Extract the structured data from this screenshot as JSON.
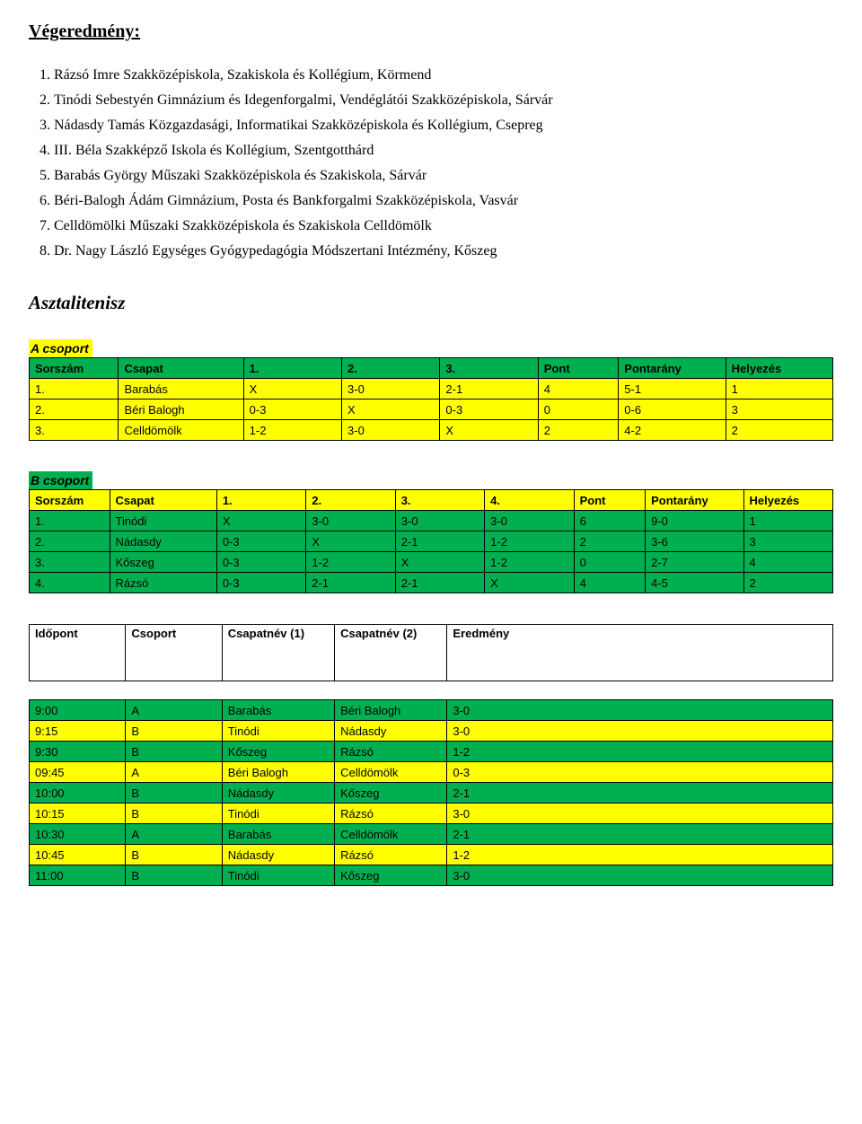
{
  "title": "Végeredmény:",
  "final_results": [
    "Rázsó Imre Szakközépiskola, Szakiskola és Kollégium, Körmend",
    "Tinódi Sebestyén Gimnázium és Idegenforgalmi, Vendéglátói Szakközépiskola, Sárvár",
    "Nádasdy Tamás Közgazdasági, Informatikai Szakközépiskola és Kollégium, Csepreg",
    "III. Béla Szakképző Iskola és Kollégium, Szentgotthárd",
    "Barabás György Műszaki Szakközépiskola és Szakiskola, Sárvár",
    "Béri-Balogh Ádám Gimnázium, Posta és Bankforgalmi Szakközépiskola, Vasvár",
    "Celldömölki Műszaki Szakközépiskola és Szakiskola Celldömölk",
    "Dr. Nagy László Egységes Gyógypedagógia Módszertani Intézmény, Kőszeg"
  ],
  "section_heading": "Asztalitenisz",
  "groupA": {
    "label": "A csoport",
    "label_bg": "#ffff00",
    "header_bg": "#00b050",
    "row_bg": "#ffff00",
    "headers": [
      "Sorszám",
      "Csapat",
      "1.",
      "2.",
      "3.",
      "Pont",
      "Pontarány",
      "Helyezés"
    ],
    "rows": [
      [
        "1.",
        "Barabás",
        "X",
        "3-0",
        "2-1",
        "4",
        "5-1",
        "1"
      ],
      [
        "2.",
        "Béri Balogh",
        "0-3",
        "X",
        "0-3",
        "0",
        "0-6",
        "3"
      ],
      [
        "3.",
        "Celldömölk",
        "1-2",
        "3-0",
        "X",
        "2",
        "4-2",
        "2"
      ]
    ],
    "col_widths": [
      "10%",
      "14%",
      "11%",
      "11%",
      "11%",
      "9%",
      "12%",
      "12%"
    ]
  },
  "groupB": {
    "label": "B csoport",
    "label_bg": "#00b050",
    "header_bg": "#ffff00",
    "row_bg": "#00b050",
    "headers": [
      "Sorszám",
      "Csapat",
      "1.",
      "2.",
      "3.",
      "4.",
      "Pont",
      "Pontarány",
      "Helyezés"
    ],
    "rows": [
      [
        "1.",
        "Tinódi",
        "X",
        "3-0",
        "3-0",
        "3-0",
        "6",
        "9-0",
        "1"
      ],
      [
        "2.",
        "Nádasdy",
        "0-3",
        "X",
        "2-1",
        "1-2",
        "2",
        "3-6",
        "3"
      ],
      [
        "3.",
        "Kőszeg",
        "0-3",
        "1-2",
        "X",
        "1-2",
        "0",
        "2-7",
        "4"
      ],
      [
        "4.",
        "Rázsó",
        "0-3",
        "2-1",
        "2-1",
        "X",
        "4",
        "4-5",
        "2"
      ]
    ],
    "col_widths": [
      "9%",
      "12%",
      "10%",
      "10%",
      "10%",
      "10%",
      "8%",
      "11%",
      "10%"
    ]
  },
  "schedule": {
    "headers": [
      "Időpont",
      "Csoport",
      "Csapatnév (1)",
      "Csapatnév (2)",
      "Eredmény"
    ],
    "col_widths": [
      "12%",
      "12%",
      "14%",
      "14%",
      "48%"
    ],
    "rows": [
      {
        "bg": "green",
        "cells": [
          "9:00",
          "A",
          "Barabás",
          "Béri Balogh",
          "3-0"
        ]
      },
      {
        "bg": "yellow",
        "cells": [
          "9:15",
          "B",
          "Tinódi",
          "Nádasdy",
          "3-0"
        ]
      },
      {
        "bg": "green",
        "cells": [
          "9:30",
          "B",
          "Kőszeg",
          "Rázsó",
          "1-2"
        ]
      },
      {
        "bg": "yellow",
        "cells": [
          "09:45",
          "A",
          "Béri Balogh",
          "Celldömölk",
          "0-3"
        ]
      },
      {
        "bg": "green",
        "cells": [
          "10:00",
          "B",
          "Nádasdy",
          "Kőszeg",
          "2-1"
        ]
      },
      {
        "bg": "yellow",
        "cells": [
          "10:15",
          "B",
          "Tinódi",
          "Rázsó",
          "3-0"
        ]
      },
      {
        "bg": "green",
        "cells": [
          "10:30",
          "A",
          "Barabás",
          "Celldömölk",
          "2-1"
        ]
      },
      {
        "bg": "yellow",
        "cells": [
          "10:45",
          "B",
          "Nádasdy",
          "Rázsó",
          "1-2"
        ]
      },
      {
        "bg": "green",
        "cells": [
          "11:00",
          "B",
          "Tinódi",
          "Kőszeg",
          "3-0"
        ]
      }
    ]
  },
  "colors": {
    "yellow": "#ffff00",
    "green": "#00b050",
    "border": "#000000"
  }
}
